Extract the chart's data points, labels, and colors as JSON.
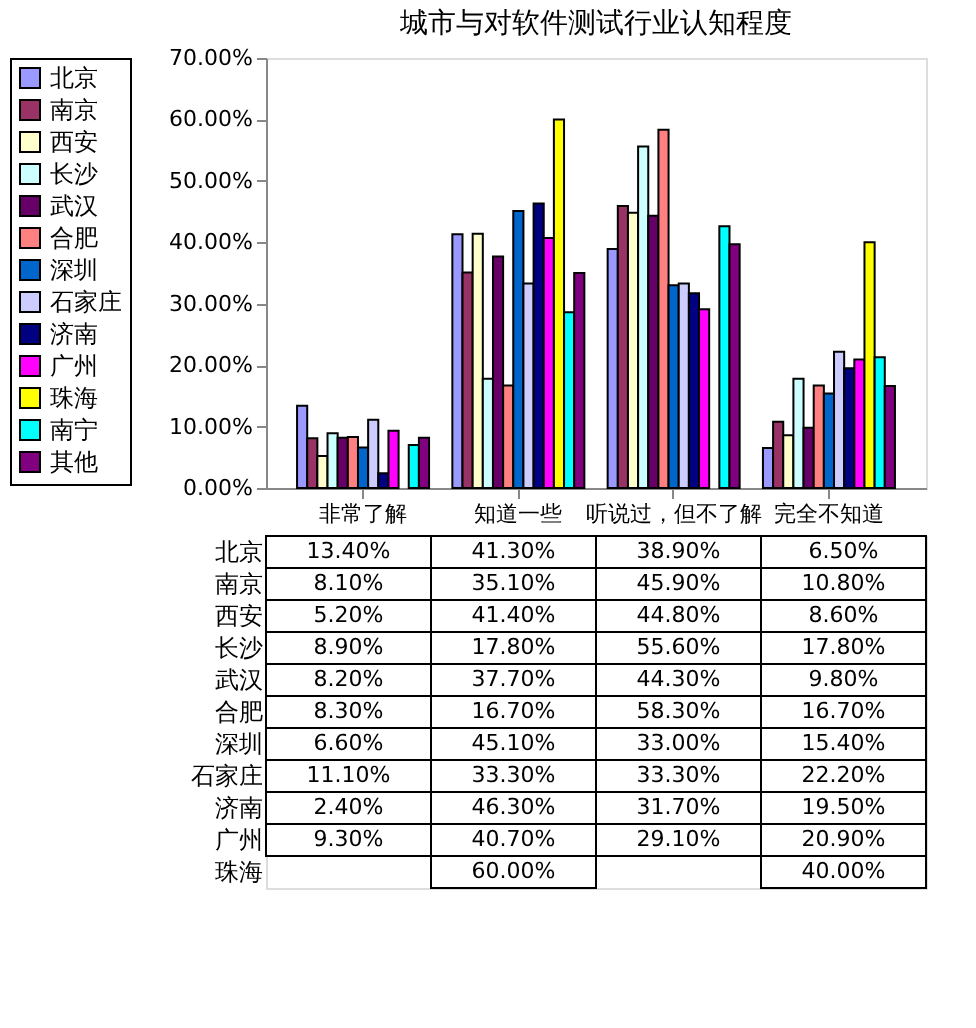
{
  "chart_data": {
    "type": "bar",
    "title": "城市与对软件测试行业认知程度",
    "categories": [
      "非常了解",
      "知道一些",
      "听说过，但不了解",
      "完全不知道"
    ],
    "ylim": [
      0,
      70
    ],
    "yticks": [
      {
        "value": 0,
        "label": "0.00%"
      },
      {
        "value": 10,
        "label": "10.00%"
      },
      {
        "value": 20,
        "label": "20.00%"
      },
      {
        "value": 30,
        "label": "30.00%"
      },
      {
        "value": 40,
        "label": "40.00%"
      },
      {
        "value": 50,
        "label": "50.00%"
      },
      {
        "value": 60,
        "label": "60.00%"
      },
      {
        "value": 70,
        "label": "70.00%"
      }
    ],
    "grid": false,
    "legend": "left",
    "series": [
      {
        "name": "北京",
        "color": "#9999ff",
        "values": [
          13.4,
          41.3,
          38.9,
          6.5
        ],
        "value_labels": [
          "13.40%",
          "41.30%",
          "38.90%",
          "6.50%"
        ]
      },
      {
        "name": "南京",
        "color": "#993366",
        "values": [
          8.1,
          35.1,
          45.9,
          10.8
        ],
        "value_labels": [
          "8.10%",
          "35.10%",
          "45.90%",
          "10.80%"
        ]
      },
      {
        "name": "西安",
        "color": "#ffffcc",
        "values": [
          5.2,
          41.4,
          44.8,
          8.6
        ],
        "value_labels": [
          "5.20%",
          "41.40%",
          "44.80%",
          "8.60%"
        ]
      },
      {
        "name": "长沙",
        "color": "#ccffff",
        "values": [
          8.9,
          17.8,
          55.6,
          17.8
        ],
        "value_labels": [
          "8.90%",
          "17.80%",
          "55.60%",
          "17.80%"
        ]
      },
      {
        "name": "武汉",
        "color": "#660066",
        "values": [
          8.2,
          37.7,
          44.3,
          9.8
        ],
        "value_labels": [
          "8.20%",
          "37.70%",
          "44.30%",
          "9.80%"
        ]
      },
      {
        "name": "合肥",
        "color": "#ff8080",
        "values": [
          8.3,
          16.7,
          58.3,
          16.7
        ],
        "value_labels": [
          "8.30%",
          "16.70%",
          "58.30%",
          "16.70%"
        ]
      },
      {
        "name": "深圳",
        "color": "#0066cc",
        "values": [
          6.6,
          45.1,
          33.0,
          15.4
        ],
        "value_labels": [
          "6.60%",
          "45.10%",
          "33.00%",
          "15.40%"
        ]
      },
      {
        "name": "石家庄",
        "color": "#ccccff",
        "values": [
          11.1,
          33.3,
          33.3,
          22.2
        ],
        "value_labels": [
          "11.10%",
          "33.30%",
          "33.30%",
          "22.20%"
        ]
      },
      {
        "name": "济南",
        "color": "#000080",
        "values": [
          2.4,
          46.3,
          31.7,
          19.5
        ],
        "value_labels": [
          "2.40%",
          "46.30%",
          "31.70%",
          "19.50%"
        ]
      },
      {
        "name": "广州",
        "color": "#ff00ff",
        "values": [
          9.3,
          40.7,
          29.1,
          20.9
        ],
        "value_labels": [
          "9.30%",
          "40.70%",
          "29.10%",
          "20.90%"
        ]
      },
      {
        "name": "珠海",
        "color": "#ffff00",
        "values": [
          null,
          60.0,
          null,
          40.0
        ],
        "value_labels": [
          null,
          "60.00%",
          null,
          "40.00%"
        ]
      },
      {
        "name": "南宁",
        "color": "#00ffff",
        "values": [
          7.0,
          28.6,
          42.6,
          21.3
        ]
      },
      {
        "name": "其他",
        "color": "#800080",
        "values": [
          8.2,
          35.0,
          39.7,
          16.6
        ]
      }
    ]
  }
}
